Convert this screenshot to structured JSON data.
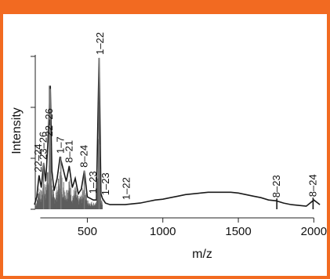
{
  "chart_data": {
    "type": "line",
    "title": "",
    "xlabel": "m/z",
    "ylabel": "Intensity",
    "xlim": [
      150,
      2050
    ],
    "ylim": [
      0,
      100
    ],
    "x_ticks": [
      "500",
      "1000",
      "1500",
      "2000"
    ],
    "x_tick_values": [
      500,
      1000,
      1500,
      2000
    ],
    "y_axis_numbers_shown": false,
    "grid": false,
    "series": [
      {
        "x": [
          150,
          165,
          180,
          195,
          210,
          225,
          240,
          255,
          265,
          280,
          300,
          320,
          340,
          360,
          380,
          400,
          420,
          440,
          460,
          480,
          500,
          520,
          540,
          560,
          578,
          590,
          600,
          620,
          650,
          700,
          750,
          800,
          850,
          900,
          950,
          1000,
          1050,
          1100,
          1150,
          1200,
          1250,
          1300,
          1350,
          1400,
          1450,
          1500,
          1550,
          1600,
          1650,
          1700,
          1750,
          1800,
          1850,
          1900,
          1950,
          2000,
          2040
        ],
        "y": [
          3,
          8,
          22,
          14,
          30,
          18,
          45,
          80,
          25,
          12,
          20,
          34,
          26,
          18,
          28,
          14,
          20,
          10,
          13,
          25,
          8,
          7,
          6,
          6,
          98,
          10,
          7,
          4,
          3,
          3,
          3,
          3.5,
          4,
          5,
          6,
          6.5,
          7.5,
          8.5,
          9.5,
          10,
          10.5,
          11,
          11,
          11,
          11,
          10.5,
          9.5,
          8.5,
          7.5,
          6,
          5.5,
          4,
          3,
          2.5,
          2,
          6,
          3
        ]
      }
    ],
    "peak_labels": [
      {
        "label": "22–24",
        "x": 175,
        "y": 22
      },
      {
        "label": "23–26",
        "x": 210,
        "y": 30
      },
      {
        "label": "22–26",
        "x": 248,
        "y": 45
      },
      {
        "label": "1–7",
        "x": 325,
        "y": 34
      },
      {
        "label": "8–21",
        "x": 380,
        "y": 28
      },
      {
        "label": "8–24",
        "x": 480,
        "y": 25
      },
      {
        "label": "1–23",
        "x": 540,
        "y": 8
      },
      {
        "label": "1–22",
        "x": 585,
        "y": 98
      },
      {
        "label": "1–23",
        "x": 622,
        "y": 7
      },
      {
        "label": "1–22",
        "x": 760,
        "y": 4
      },
      {
        "label": "8–23",
        "x": 1755,
        "y": 5.5
      },
      {
        "label": "8–24",
        "x": 1995,
        "y": 6
      }
    ]
  }
}
